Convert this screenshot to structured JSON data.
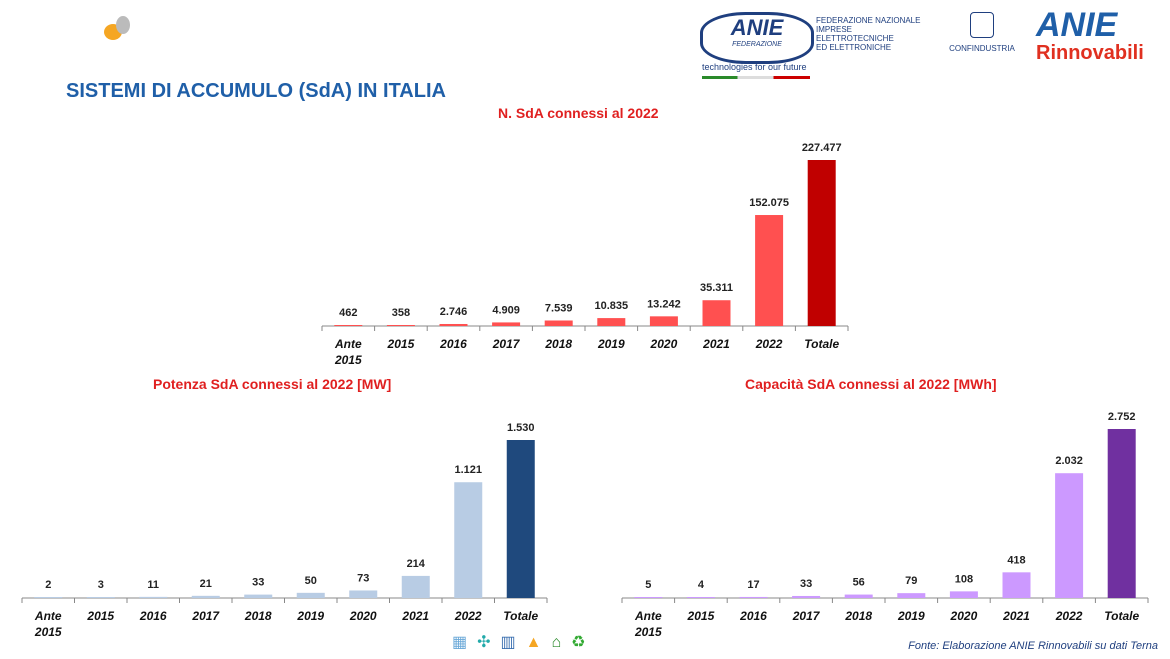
{
  "header": {
    "title": "SISTEMI DI ACCUMULO (SdA) IN ITALIA",
    "logos": {
      "anie": "ANIE",
      "anie_sub": "FEDERAZIONE",
      "anie_desc": [
        "FEDERAZIONE NAZIONALE",
        "IMPRESE ELETTROTECNICHE",
        "ED ELETTRONICHE"
      ],
      "tagline": "technologies for our future",
      "confindustria": "CONFINDUSTRIA",
      "rinn_top": "ANIE",
      "rinn_bottom": "Rinnovabili"
    }
  },
  "footer": {
    "source": "Fonte: Elaborazione ANIE Rinnovabili su dati Terna"
  },
  "chart_data": [
    {
      "type": "bar",
      "title": "N. SdA connessi al 2022",
      "categories": [
        "Ante 2015",
        "2015",
        "2016",
        "2017",
        "2018",
        "2019",
        "2020",
        "2021",
        "2022",
        "Totale"
      ],
      "values": [
        462,
        358,
        2746,
        4909,
        7539,
        10835,
        13242,
        35311,
        152075,
        227477
      ],
      "labels": [
        "462",
        "358",
        "2.746",
        "4.909",
        "7.539",
        "10.835",
        "13.242",
        "35.311",
        "152.075",
        "227.477"
      ],
      "colors": {
        "bar": "#ff5050",
        "total": "#c00000"
      }
    },
    {
      "type": "bar",
      "title": "Potenza SdA connessi al 2022 [MW]",
      "categories": [
        "Ante 2015",
        "2015",
        "2016",
        "2017",
        "2018",
        "2019",
        "2020",
        "2021",
        "2022",
        "Totale"
      ],
      "values": [
        2,
        3,
        11,
        21,
        33,
        50,
        73,
        214,
        1121,
        1530
      ],
      "labels": [
        "2",
        "3",
        "11",
        "21",
        "33",
        "50",
        "73",
        "214",
        "1.121",
        "1.530"
      ],
      "colors": {
        "bar": "#b8cce4",
        "total": "#1f497d"
      }
    },
    {
      "type": "bar",
      "title": "Capacità SdA connessi al 2022 [MWh]",
      "categories": [
        "Ante 2015",
        "2015",
        "2016",
        "2017",
        "2018",
        "2019",
        "2020",
        "2021",
        "2022",
        "Totale"
      ],
      "values": [
        5,
        4,
        17,
        33,
        56,
        79,
        108,
        418,
        2032,
        2752
      ],
      "labels": [
        "5",
        "4",
        "17",
        "33",
        "56",
        "79",
        "108",
        "418",
        "2.032",
        "2.752"
      ],
      "colors": {
        "bar": "#cc99ff",
        "total": "#7030a0"
      }
    }
  ]
}
